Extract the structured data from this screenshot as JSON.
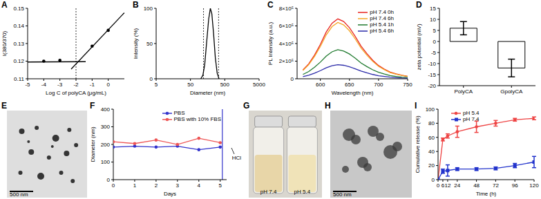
{
  "chart_data": [
    {
      "label": "A",
      "type": "scatter",
      "x_label": "Log C of polyCA (μg/mL)",
      "y_label": "I(380/370)",
      "xlim": [
        -5,
        1
      ],
      "xticks": [
        -5,
        -4,
        -3,
        -2,
        -1,
        0
      ],
      "ylim": [
        0.11,
        0.15
      ],
      "yticks": [
        0.11,
        0.12,
        0.13,
        0.14,
        0.15
      ],
      "vlines": [
        -2
      ],
      "series": [
        {
          "type": "scatter",
          "marker": "circle",
          "color": "#000000",
          "x": [
            -4,
            -3,
            -1,
            0
          ],
          "values": [
            0.12,
            0.1205,
            0.1285,
            0.1375
          ]
        },
        {
          "type": "line",
          "color": "#000000",
          "x": [
            -5,
            -1.4
          ],
          "values": [
            0.1195,
            0.1197
          ]
        },
        {
          "type": "line",
          "color": "#000000",
          "x": [
            -2.3,
            1
          ],
          "values": [
            0.1155,
            0.1475
          ]
        }
      ]
    },
    {
      "label": "B",
      "type": "line",
      "x_label": "Diameter (nm)",
      "y_label": "Intensity (%)",
      "log": "x",
      "xlim": [
        5,
        5000
      ],
      "xticks": [
        5,
        50,
        500,
        5000
      ],
      "ylim": [
        0,
        100
      ],
      "yticks": [
        0,
        50,
        100
      ],
      "vlines": [
        120,
        330
      ],
      "color": "#000000",
      "x": [
        100,
        115,
        130,
        150,
        170,
        190,
        210,
        235,
        265,
        300,
        340
      ],
      "values": [
        0,
        5,
        20,
        55,
        85,
        100,
        92,
        65,
        30,
        8,
        0
      ]
    },
    {
      "label": "C",
      "type": "line",
      "x_label": "Wavelength (nm)",
      "y_label": "PL Intensity (a.u.)",
      "xlim": [
        560,
        750
      ],
      "xticks": [
        600,
        650,
        700,
        750
      ],
      "ylim": [
        0,
        800000
      ],
      "yticks": [
        0,
        {
          "value": 200000,
          "label": "2×10⁵"
        },
        {
          "value": 400000,
          "label": "4×10⁵"
        },
        {
          "value": 600000,
          "label": "6×10⁵"
        },
        {
          "value": 800000,
          "label": "8×10⁵"
        }
      ],
      "legend": "top-right",
      "x": [
        570,
        580,
        590,
        600,
        610,
        620,
        630,
        640,
        650,
        660,
        670,
        680,
        690,
        700,
        710,
        720,
        730,
        740,
        750
      ],
      "series": [
        {
          "name": "pH 7.4 0h",
          "color": "#e8231f",
          "values": [
            100000,
            170000,
            270000,
            390000,
            530000,
            630000,
            680000,
            650000,
            580000,
            480000,
            370000,
            285000,
            210000,
            150000,
            110000,
            75000,
            55000,
            40000,
            28000
          ]
        },
        {
          "name": "pH 7.4 6h",
          "color": "#f5a623",
          "values": [
            94000,
            160000,
            254000,
            367000,
            498000,
            592000,
            640000,
            611000,
            545000,
            451000,
            348000,
            268000,
            197000,
            141000,
            103000,
            70000,
            52000,
            38000,
            26000
          ]
        },
        {
          "name": "pH 5.4 1h",
          "color": "#1f7a2e",
          "values": [
            49000,
            82000,
            131000,
            189000,
            257000,
            306000,
            330000,
            315000,
            281000,
            233000,
            179000,
            138000,
            102000,
            73000,
            53000,
            36000,
            27000,
            19000,
            14000
          ]
        },
        {
          "name": "pH 5.4 6h",
          "color": "#2a2aa8",
          "values": [
            24000,
            40000,
            64000,
            92000,
            125000,
            148000,
            160000,
            153000,
            136000,
            113000,
            87000,
            67000,
            49000,
            35000,
            26000,
            18000,
            13000,
            9000,
            7000
          ]
        }
      ]
    },
    {
      "label": "D",
      "type": "bar",
      "y_label": "zeta potential (mV)",
      "categories": [
        "PolyCA",
        "GpolyCA"
      ],
      "values": [
        6,
        -12
      ],
      "errors": [
        3,
        4
      ],
      "color": "#ffffff",
      "ylim": [
        -20,
        15
      ],
      "yticks": [
        -20,
        -15,
        -10,
        -5,
        0,
        5,
        10,
        15
      ]
    },
    {
      "label": "E",
      "type": "image",
      "annotations": [
        "500 nm"
      ]
    },
    {
      "label": "F",
      "type": "line",
      "x_label": "Days",
      "y_label": "Diameter (nm)",
      "xlim": [
        0,
        5.3
      ],
      "xticks": [
        0,
        1,
        2,
        3,
        4,
        5
      ],
      "ylim": [
        0,
        400
      ],
      "yticks": [
        0,
        100,
        200,
        300,
        400
      ],
      "legend": "top-right",
      "vlines": [
        5.1
      ],
      "annotations": [
        "HCl"
      ],
      "x": [
        0,
        1,
        2,
        3,
        4,
        5
      ],
      "series": [
        {
          "name": "PBS",
          "color": "#3333cc",
          "marker": "circle",
          "values": [
            185,
            190,
            185,
            190,
            170,
            185
          ]
        },
        {
          "name": "PBS with 10% FBS",
          "color": "#ee5555",
          "marker": "circle",
          "values": [
            215,
            205,
            225,
            200,
            235,
            210
          ]
        }
      ]
    },
    {
      "label": "G",
      "type": "image",
      "annotations": [
        "pH 7.4",
        "pH 5.4"
      ]
    },
    {
      "label": "H",
      "type": "image",
      "annotations": [
        "500 nm"
      ]
    },
    {
      "label": "I",
      "type": "line",
      "x_label": "Time (h)",
      "y_label": "Cumulative release (%)",
      "xlim": [
        0,
        120
      ],
      "xticks": [
        0,
        6,
        12,
        24,
        48,
        72,
        96,
        120
      ],
      "ylim": [
        0,
        100
      ],
      "yticks": [
        0,
        20,
        40,
        60,
        80,
        100
      ],
      "legend": "top",
      "x": [
        0,
        6,
        12,
        24,
        48,
        72,
        96,
        120
      ],
      "series": [
        {
          "name": "pH 5.4",
          "color": "#ee4444",
          "marker": "circle",
          "values": [
            0,
            57,
            62,
            68,
            75,
            80,
            85,
            87
          ],
          "errors": [
            0,
            2,
            3,
            8,
            8,
            4,
            2,
            2
          ]
        },
        {
          "name": "pH 7.4",
          "color": "#2233cc",
          "marker": "square",
          "values": [
            0,
            12,
            13,
            15,
            15,
            16,
            20,
            25
          ],
          "errors": [
            0,
            3,
            8,
            2,
            2,
            2,
            3,
            8
          ]
        }
      ]
    }
  ]
}
